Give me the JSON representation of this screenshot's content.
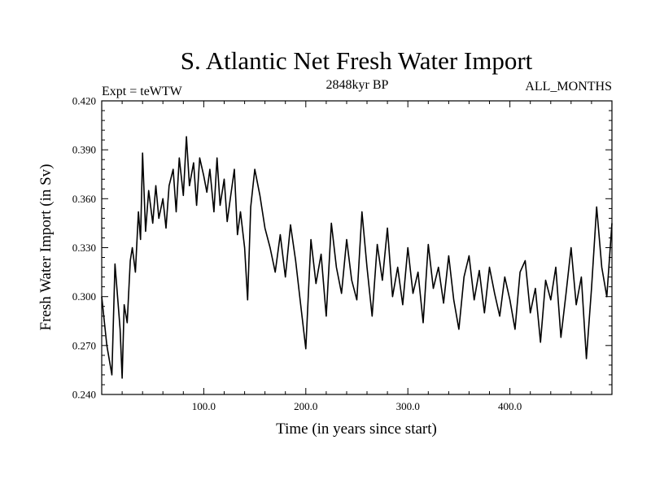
{
  "chart_data": {
    "type": "line",
    "title": "S. Atlantic Net Fresh Water Import",
    "left_label": "Expt = teWTW",
    "center_label": "2848kyr BP",
    "right_label": "ALL_MONTHS",
    "xlabel": "Time (in years since start)",
    "ylabel": "Fresh Water Import (in Sv)",
    "xlim": [
      0,
      500
    ],
    "ylim": [
      0.24,
      0.42
    ],
    "xticks": [
      {
        "value": 100,
        "label": "100.0"
      },
      {
        "value": 200,
        "label": "200.0"
      },
      {
        "value": 300,
        "label": "300.0"
      },
      {
        "value": 400,
        "label": "400.0"
      }
    ],
    "yticks": [
      {
        "value": 0.24,
        "label": "0.240"
      },
      {
        "value": 0.27,
        "label": "0.270"
      },
      {
        "value": 0.3,
        "label": "0.300"
      },
      {
        "value": 0.33,
        "label": "0.330"
      },
      {
        "value": 0.36,
        "label": "0.360"
      },
      {
        "value": 0.39,
        "label": "0.390"
      },
      {
        "value": 0.42,
        "label": "0.420"
      }
    ],
    "series": [
      {
        "name": "Fresh Water Import",
        "color": "#000000",
        "x": [
          0,
          5,
          10,
          13,
          16,
          18,
          20,
          22,
          25,
          28,
          30,
          33,
          36,
          38,
          40,
          43,
          46,
          50,
          53,
          56,
          60,
          63,
          66,
          70,
          73,
          76,
          80,
          83,
          86,
          90,
          93,
          96,
          100,
          103,
          106,
          110,
          113,
          116,
          120,
          123,
          126,
          130,
          133,
          136,
          140,
          143,
          146,
          150,
          155,
          160,
          165,
          170,
          175,
          180,
          185,
          190,
          195,
          200,
          205,
          210,
          215,
          220,
          225,
          230,
          235,
          240,
          245,
          250,
          255,
          260,
          265,
          270,
          275,
          280,
          285,
          290,
          295,
          300,
          305,
          310,
          315,
          320,
          325,
          330,
          335,
          340,
          345,
          350,
          355,
          360,
          365,
          370,
          375,
          380,
          385,
          390,
          395,
          400,
          405,
          410,
          415,
          420,
          425,
          430,
          435,
          440,
          445,
          450,
          455,
          460,
          465,
          470,
          475,
          480,
          485,
          490,
          495,
          500
        ],
        "values": [
          0.3,
          0.27,
          0.252,
          0.32,
          0.296,
          0.28,
          0.25,
          0.295,
          0.284,
          0.322,
          0.33,
          0.315,
          0.352,
          0.335,
          0.388,
          0.34,
          0.365,
          0.345,
          0.368,
          0.348,
          0.36,
          0.342,
          0.368,
          0.378,
          0.352,
          0.385,
          0.362,
          0.398,
          0.368,
          0.382,
          0.356,
          0.385,
          0.374,
          0.364,
          0.378,
          0.352,
          0.385,
          0.356,
          0.372,
          0.346,
          0.36,
          0.378,
          0.338,
          0.352,
          0.33,
          0.298,
          0.355,
          0.378,
          0.362,
          0.342,
          0.33,
          0.315,
          0.338,
          0.312,
          0.344,
          0.322,
          0.295,
          0.268,
          0.335,
          0.308,
          0.326,
          0.288,
          0.345,
          0.318,
          0.302,
          0.335,
          0.31,
          0.298,
          0.352,
          0.318,
          0.288,
          0.332,
          0.31,
          0.342,
          0.3,
          0.318,
          0.295,
          0.33,
          0.302,
          0.315,
          0.284,
          0.332,
          0.305,
          0.318,
          0.296,
          0.325,
          0.298,
          0.28,
          0.312,
          0.325,
          0.298,
          0.316,
          0.29,
          0.318,
          0.302,
          0.288,
          0.312,
          0.298,
          0.28,
          0.315,
          0.322,
          0.29,
          0.305,
          0.272,
          0.31,
          0.298,
          0.318,
          0.275,
          0.302,
          0.33,
          0.295,
          0.312,
          0.262,
          0.305,
          0.355,
          0.318,
          0.3,
          0.345
        ]
      }
    ]
  }
}
